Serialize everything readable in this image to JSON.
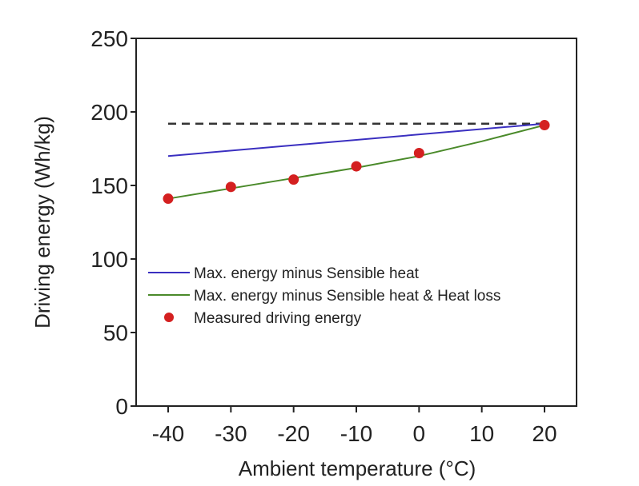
{
  "chart_data": {
    "type": "line",
    "title": "",
    "xlabel": "Ambient temperature (°C)",
    "ylabel": "Driving energy (Wh/kg)",
    "xlim": [
      -45,
      25
    ],
    "ylim": [
      0,
      250
    ],
    "xticks": [
      -40,
      -30,
      -20,
      -10,
      0,
      10,
      20
    ],
    "yticks": [
      0,
      50,
      100,
      150,
      200,
      250
    ],
    "grid": false,
    "legend_position": "center-left",
    "reference_line": {
      "name": "Max. energy",
      "style": "dashed",
      "color": "#333333",
      "y": 192,
      "x_range": [
        -40,
        20
      ]
    },
    "series": [
      {
        "name": "Max. energy minus Sensible heat",
        "type": "line",
        "color": "#3a2fc0",
        "x": [
          -40,
          20
        ],
        "y": [
          170,
          192
        ]
      },
      {
        "name": "Max. energy minus Sensible heat & Heat loss",
        "type": "line",
        "color": "#4a8a2a",
        "x": [
          -40,
          -30,
          -20,
          -10,
          0,
          10,
          20
        ],
        "y": [
          141,
          148,
          155,
          162,
          170,
          180,
          191
        ]
      },
      {
        "name": "Measured driving energy",
        "type": "scatter",
        "color": "#d42020",
        "x": [
          -40,
          -30,
          -20,
          -10,
          0,
          20
        ],
        "y": [
          141,
          149,
          154,
          163,
          172,
          191
        ]
      }
    ]
  }
}
